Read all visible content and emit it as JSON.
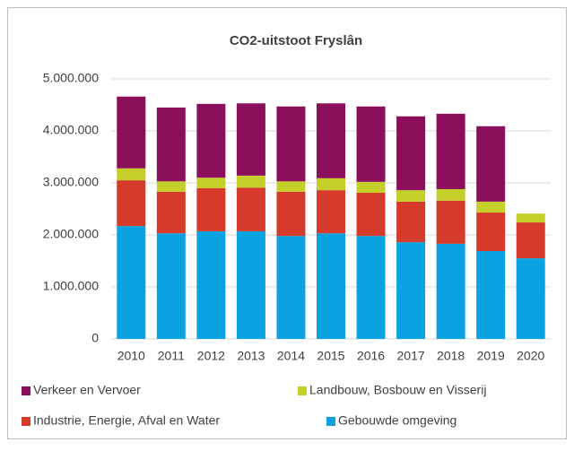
{
  "chart_data": {
    "type": "stacked_bar",
    "title": "CO2-uitstoot Fryslân",
    "categories": [
      "2010",
      "2011",
      "2012",
      "2013",
      "2014",
      "2015",
      "2016",
      "2017",
      "2018",
      "2019",
      "2020"
    ],
    "series": [
      {
        "name": "Gebouwde omgeving",
        "color": "#0aa2e0",
        "values": [
          2170000,
          2030000,
          2070000,
          2070000,
          1980000,
          2030000,
          1980000,
          1860000,
          1830000,
          1690000,
          1550000
        ]
      },
      {
        "name": "Industrie, Energie, Afval en Water",
        "color": "#d63a2a",
        "values": [
          880000,
          800000,
          830000,
          840000,
          850000,
          830000,
          830000,
          780000,
          830000,
          740000,
          690000
        ]
      },
      {
        "name": "Landbouw, Bosbouw en Visserij",
        "color": "#c4cf2a",
        "values": [
          230000,
          200000,
          200000,
          230000,
          200000,
          230000,
          210000,
          220000,
          220000,
          210000,
          170000
        ]
      },
      {
        "name": "Verkeer en Vervoer",
        "color": "#8b0f5b",
        "values": [
          1380000,
          1420000,
          1420000,
          1390000,
          1440000,
          1440000,
          1450000,
          1420000,
          1450000,
          1450000,
          0
        ]
      }
    ],
    "ylim": [
      0,
      5000000
    ],
    "yticks": [
      0,
      {
        "value": 1000000,
        "label": "1.000.000"
      },
      {
        "value": 2000000,
        "label": "2.000.000"
      },
      {
        "value": 3000000,
        "label": "3.000.000"
      },
      {
        "value": 4000000,
        "label": "4.000.000"
      },
      {
        "value": 5000000,
        "label": "5.000.000"
      }
    ],
    "grid": true
  }
}
